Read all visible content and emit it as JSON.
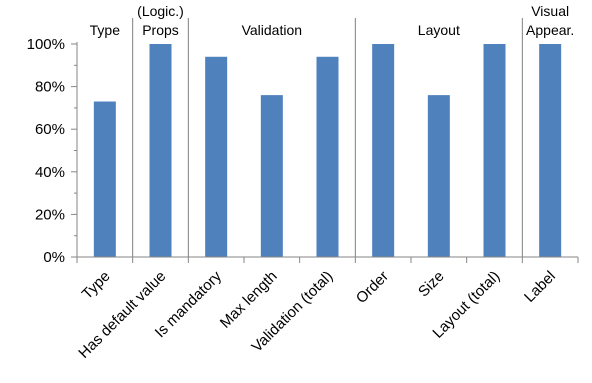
{
  "chart_data": {
    "type": "bar",
    "categories": [
      "Type",
      "Has default value",
      "Is mandatory",
      "Max length",
      "Validation (total)",
      "Order",
      "Size",
      "Layout (total)",
      "Label"
    ],
    "values": [
      73,
      100,
      94,
      76,
      94,
      100,
      76,
      100,
      100
    ],
    "ylim": [
      0,
      100
    ],
    "yticks": [
      "0%",
      "20%",
      "40%",
      "60%",
      "80%",
      "100%"
    ],
    "groups": [
      {
        "label": "Type",
        "start": 0,
        "end": 0
      },
      {
        "label": "(Logic.) Props",
        "start": 1,
        "end": 1
      },
      {
        "label": "Validation",
        "start": 2,
        "end": 4
      },
      {
        "label": "Layout",
        "start": 5,
        "end": 7
      },
      {
        "label": "Visual Appear.",
        "start": 8,
        "end": 8
      }
    ],
    "bar_color": "#4f81bd",
    "grid": false,
    "legend": "none"
  }
}
